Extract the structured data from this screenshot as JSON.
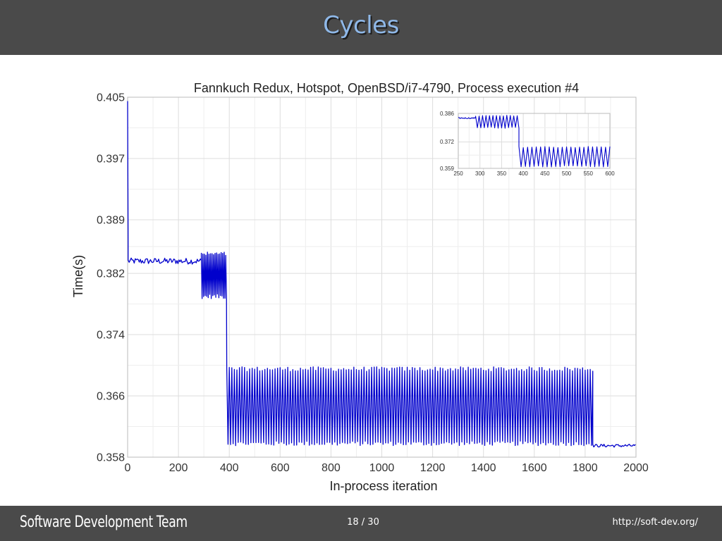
{
  "slide": {
    "title": "Cycles",
    "footer_team": "Software Development Team",
    "page_indicator": "18 / 30",
    "footer_url": "http://soft-dev.org/"
  },
  "colors": {
    "bar_bg": "#4a4a4a",
    "title_text": "#8fb8e8",
    "series_line": "#0000cc",
    "grid": "#dddddd"
  },
  "chart_data": [
    {
      "type": "line",
      "title": "Fannkuch Redux, Hotspot, OpenBSD/i7-4790, Process execution #4",
      "xlabel": "In-process iteration",
      "ylabel": "Time(s)",
      "xlim": [
        0,
        2000
      ],
      "ylim": [
        0.358,
        0.405
      ],
      "x_ticks": [
        0,
        200,
        400,
        600,
        800,
        1000,
        1200,
        1400,
        1600,
        1800,
        2000
      ],
      "y_ticks": [
        "0.358",
        "0.366",
        "0.374",
        "0.382",
        "0.389",
        "0.397",
        "0.405"
      ],
      "grid": true,
      "series": [
        {
          "segments": [
            {
              "x_start": 0,
              "x_end": 2,
              "shape": "warmup",
              "values": [
                0.4045,
                0.386
              ]
            },
            {
              "x_start": 2,
              "x_end": 290,
              "shape": "flat",
              "level": 0.3836,
              "noise": 0.0004
            },
            {
              "x_start": 290,
              "x_end": 390,
              "shape": "oscillating",
              "low": 0.379,
              "high": 0.3845,
              "period": 6
            },
            {
              "x_start": 390,
              "x_end": 1830,
              "shape": "oscillating",
              "low": 0.3598,
              "high": 0.3695,
              "period": 10
            },
            {
              "x_start": 1830,
              "x_end": 2000,
              "shape": "flat",
              "level": 0.3595,
              "noise": 0.0002
            }
          ]
        }
      ]
    },
    {
      "type": "line",
      "role": "inset",
      "title": "",
      "xlim": [
        250,
        600
      ],
      "ylim": [
        0.359,
        0.386
      ],
      "x_ticks": [
        250,
        300,
        350,
        400,
        450,
        500,
        550,
        600
      ],
      "y_ticks": [
        "0.359",
        "0.372",
        "0.386"
      ],
      "grid": true,
      "series": [
        {
          "segments": [
            {
              "x_start": 250,
              "x_end": 290,
              "shape": "flat",
              "level": 0.3837,
              "noise": 0.0003
            },
            {
              "x_start": 290,
              "x_end": 390,
              "shape": "oscillating",
              "low": 0.379,
              "high": 0.3848,
              "period": 8
            },
            {
              "x_start": 390,
              "x_end": 600,
              "shape": "oscillating",
              "low": 0.36,
              "high": 0.3695,
              "period": 10
            }
          ]
        }
      ]
    }
  ]
}
